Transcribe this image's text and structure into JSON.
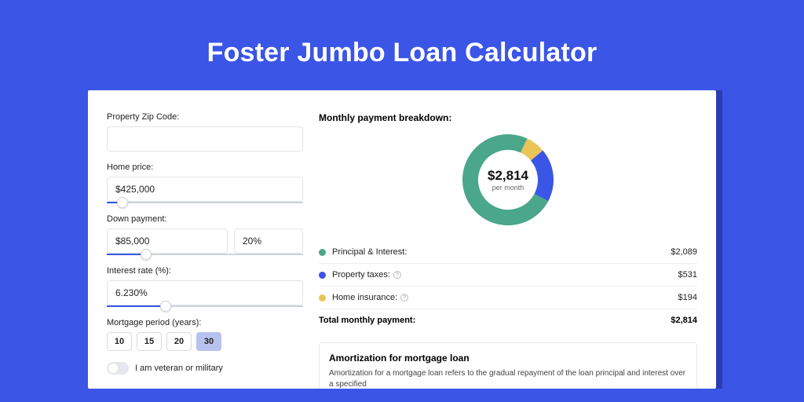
{
  "page": {
    "title": "Foster Jumbo Loan Calculator",
    "bg_color": "#3b55e6",
    "accent_shadow": "#2a3db0"
  },
  "form": {
    "zip": {
      "label": "Property Zip Code:",
      "value": ""
    },
    "home_price": {
      "label": "Home price:",
      "value": "$425,000",
      "slider_pct": 8
    },
    "down_payment": {
      "label": "Down payment:",
      "value": "$85,000",
      "pct": "20%",
      "slider_pct": 20
    },
    "interest_rate": {
      "label": "Interest rate (%):",
      "value": "6.230%",
      "slider_pct": 30
    },
    "period": {
      "label": "Mortgage period (years):",
      "options": [
        "10",
        "15",
        "20",
        "30"
      ],
      "selected": "30"
    },
    "veteran": {
      "label": "I am veteran or military",
      "on": false
    }
  },
  "breakdown": {
    "title": "Monthly payment breakdown:",
    "center_amount": "$2,814",
    "center_sub": "per month",
    "items": [
      {
        "label": "Principal & Interest:",
        "value": "$2,089",
        "color": "#4aa789",
        "info": false
      },
      {
        "label": "Property taxes:",
        "value": "$531",
        "color": "#3b55e6",
        "info": true
      },
      {
        "label": "Home insurance:",
        "value": "$194",
        "color": "#e9c558",
        "info": true
      }
    ],
    "total_label": "Total monthly payment:",
    "total_value": "$2,814",
    "donut": {
      "type": "donut",
      "radius": 48,
      "stroke": 20,
      "background_color": "#ffffff",
      "slices": [
        {
          "name": "home_insurance",
          "fraction": 0.069,
          "color": "#e9c558"
        },
        {
          "name": "property_taxes",
          "fraction": 0.189,
          "color": "#3b55e6"
        },
        {
          "name": "principal_interest",
          "fraction": 0.742,
          "color": "#4aa789"
        }
      ]
    }
  },
  "amort": {
    "title": "Amortization for mortgage loan",
    "text": "Amortization for a mortgage loan refers to the gradual repayment of the loan principal and interest over a specified"
  }
}
